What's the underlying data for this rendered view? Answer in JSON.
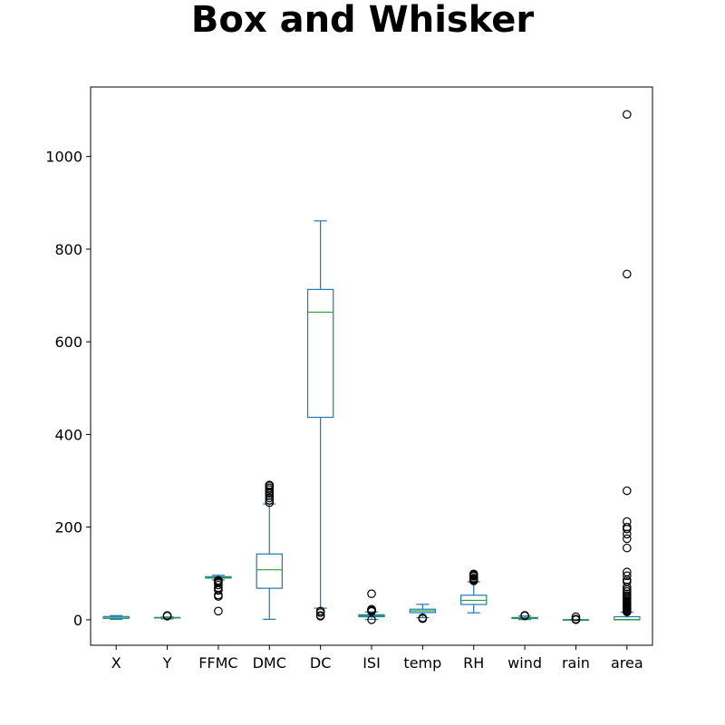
{
  "chart_data": {
    "type": "box",
    "title": "Box and Whisker",
    "xlabel": "",
    "ylabel": "",
    "ylim": [
      -55,
      1150
    ],
    "yticks": [
      0,
      200,
      400,
      600,
      800,
      1000
    ],
    "grid": false,
    "colors": {
      "box": "#1f77b4",
      "median": "#2ca02c",
      "flier": "#000000",
      "frame": "#000000"
    },
    "categories": [
      "X",
      "Y",
      "FFMC",
      "DMC",
      "DC",
      "ISI",
      "temp",
      "RH",
      "wind",
      "rain",
      "area"
    ],
    "boxes": [
      {
        "name": "X",
        "whislo": 1,
        "q1": 3,
        "med": 4,
        "q3": 7,
        "whishi": 9,
        "fliers": []
      },
      {
        "name": "Y",
        "whislo": 2,
        "q1": 4,
        "med": 4,
        "q3": 5,
        "whishi": 6,
        "fliers": [
          8,
          9,
          9
        ]
      },
      {
        "name": "FFMC",
        "whislo": 86,
        "q1": 90,
        "med": 91,
        "q3": 93,
        "whishi": 96,
        "fliers": [
          18.7,
          50.4,
          53.4,
          63.5,
          68.2,
          69,
          75.1,
          79.5,
          81.5,
          83.9,
          84.2,
          84.6,
          85
        ]
      },
      {
        "name": "DMC",
        "whislo": 1,
        "q1": 68,
        "med": 108,
        "q3": 142,
        "whishi": 250,
        "fliers": [
          253,
          258,
          263,
          268,
          273,
          276,
          281,
          285,
          289,
          291
        ]
      },
      {
        "name": "DC",
        "whislo": 25,
        "q1": 437,
        "med": 664,
        "q3": 713,
        "whishi": 861,
        "fliers": [
          7.9,
          9.3,
          15.4,
          18.7
        ]
      },
      {
        "name": "ISI",
        "whislo": 0.7,
        "q1": 6.5,
        "med": 8.4,
        "q3": 10.8,
        "whishi": 17,
        "fliers": [
          0,
          18,
          19.5,
          20.3,
          22,
          22.7,
          56.1
        ]
      },
      {
        "name": "temp",
        "whislo": 4.6,
        "q1": 15.5,
        "med": 19.3,
        "q3": 22.8,
        "whishi": 33.3,
        "fliers": [
          2.2,
          4.2
        ]
      },
      {
        "name": "RH",
        "whislo": 15,
        "q1": 33,
        "med": 42,
        "q3": 53,
        "whishi": 82,
        "fliers": [
          84,
          86,
          88,
          90,
          94,
          96,
          97,
          99
        ]
      },
      {
        "name": "wind",
        "whislo": 0.4,
        "q1": 2.7,
        "med": 4,
        "q3": 4.9,
        "whishi": 8.1,
        "fliers": [
          8.5,
          8.9,
          9.4
        ]
      },
      {
        "name": "rain",
        "whislo": 0,
        "q1": 0,
        "med": 0,
        "q3": 0,
        "whishi": 0,
        "fliers": [
          0.2,
          0.4,
          0.8,
          1,
          1.4,
          6.4
        ]
      },
      {
        "name": "area",
        "whislo": 0,
        "q1": 0,
        "med": 0.5,
        "q3": 6.6,
        "whishi": 16.4,
        "fliers": [
          17,
          19,
          21,
          23,
          25,
          27,
          29,
          31,
          33,
          35,
          38,
          40,
          43,
          46,
          49,
          52,
          56,
          61,
          65,
          71,
          82,
          86,
          95,
          103,
          155,
          175,
          185,
          196,
          200,
          212,
          278.5,
          746.3,
          1090.8
        ]
      }
    ]
  }
}
